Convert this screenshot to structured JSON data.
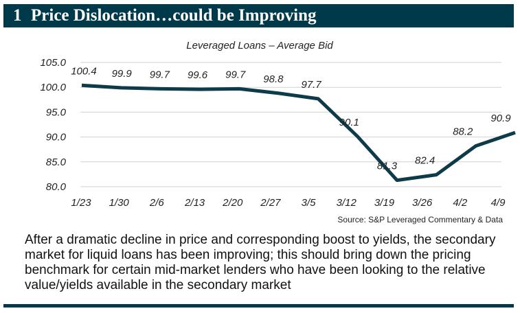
{
  "header": {
    "number": "1",
    "title": "Price Dislocation…could be Improving"
  },
  "chart_data": {
    "type": "line",
    "title": "Leveraged Loans – Average Bid",
    "categories": [
      "1/23",
      "1/30",
      "2/6",
      "2/13",
      "2/20",
      "2/27",
      "3/5",
      "3/12",
      "3/19",
      "3/26",
      "4/2",
      "4/9"
    ],
    "values": [
      100.4,
      99.9,
      99.7,
      99.6,
      99.7,
      98.8,
      97.7,
      90.1,
      81.3,
      82.4,
      88.2,
      90.9
    ],
    "value_labels": [
      "100.4",
      "99.9",
      "99.7",
      "99.6",
      "99.7",
      "98.8",
      "97.7",
      "90.1",
      "81.3",
      "82.4",
      "88.2",
      "90.9"
    ],
    "yticks": [
      "105.0",
      "100.0",
      "95.0",
      "90.0",
      "85.0",
      "80.0"
    ],
    "ylim": [
      80,
      105
    ],
    "grid": true,
    "line_color": "#0e3b49"
  },
  "source": "Source: S&P Leveraged Commentary & Data",
  "body_text": "After a dramatic decline in price and corresponding boost to yields, the secondary market for liquid loans has been improving; this should bring down the pricing benchmark for certain mid-market lenders who have been looking to the relative value/yields available in the secondary market"
}
